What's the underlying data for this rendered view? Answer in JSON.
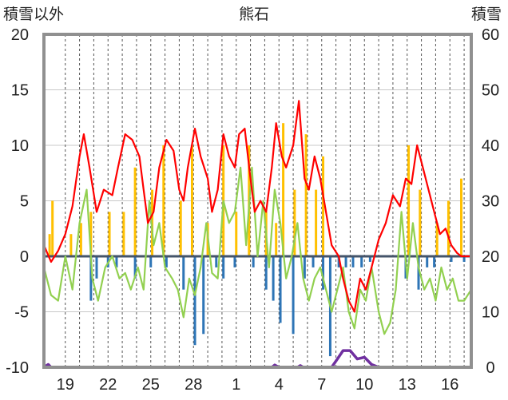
{
  "chart_data": {
    "type": "line",
    "title": "熊石",
    "left_axis_label": "積雪以外",
    "right_axis_label": "積雪",
    "y_left": {
      "min": -10,
      "max": 20,
      "ticks": [
        "20",
        "15",
        "10",
        "5",
        "0",
        "-5",
        "-10"
      ]
    },
    "y_right": {
      "min": 0,
      "max": 60,
      "ticks": [
        "60",
        "50",
        "40",
        "30",
        "20",
        "10",
        "0"
      ]
    },
    "x_ticks": [
      "19",
      "22",
      "25",
      "28",
      "1",
      "4",
      "7",
      "10",
      "13",
      "16"
    ],
    "x_range_days": [
      0,
      30
    ],
    "grid": true,
    "colors": {
      "temperature": "#ff0000",
      "humidity_like": "#92d050",
      "sunshine": "#ffc000",
      "precipitation": "#2e75b6",
      "snow_depth": "#7030a0",
      "zero_line": "#44546a"
    },
    "series": [
      {
        "key": "temperature",
        "axis": "left",
        "points": [
          [
            0,
            1
          ],
          [
            0.5,
            -0.5
          ],
          [
            1,
            0.5
          ],
          [
            1.5,
            2
          ],
          [
            2,
            4.5
          ],
          [
            2.5,
            9
          ],
          [
            2.8,
            11
          ],
          [
            3.2,
            8
          ],
          [
            3.7,
            4
          ],
          [
            4.2,
            6
          ],
          [
            4.8,
            5.5
          ],
          [
            5.2,
            8
          ],
          [
            5.7,
            11
          ],
          [
            6.2,
            10.5
          ],
          [
            6.7,
            9
          ],
          [
            7,
            6
          ],
          [
            7.3,
            3
          ],
          [
            7.7,
            4
          ],
          [
            8.1,
            8
          ],
          [
            8.6,
            10.5
          ],
          [
            9.1,
            9.5
          ],
          [
            9.5,
            6
          ],
          [
            9.8,
            5
          ],
          [
            10.1,
            8
          ],
          [
            10.6,
            11.5
          ],
          [
            11,
            9
          ],
          [
            11.5,
            7
          ],
          [
            11.8,
            4
          ],
          [
            12.2,
            6
          ],
          [
            12.6,
            11
          ],
          [
            13,
            9
          ],
          [
            13.4,
            8
          ],
          [
            13.7,
            11
          ],
          [
            14.1,
            11.5
          ],
          [
            14.5,
            7
          ],
          [
            14.8,
            4
          ],
          [
            15.2,
            5
          ],
          [
            15.6,
            4
          ],
          [
            16,
            8
          ],
          [
            16.3,
            12
          ],
          [
            16.7,
            9
          ],
          [
            17,
            8
          ],
          [
            17.5,
            10
          ],
          [
            17.9,
            14
          ],
          [
            18.3,
            7
          ],
          [
            18.6,
            6
          ],
          [
            19,
            9
          ],
          [
            19.4,
            7
          ],
          [
            19.8,
            4
          ],
          [
            20.2,
            1
          ],
          [
            20.7,
            0
          ],
          [
            21,
            -2
          ],
          [
            21.4,
            -4
          ],
          [
            21.8,
            -5
          ],
          [
            22.2,
            -2
          ],
          [
            22.6,
            -3
          ],
          [
            23,
            -1
          ],
          [
            23.5,
            1.5
          ],
          [
            24,
            3
          ],
          [
            24.5,
            5.5
          ],
          [
            25,
            4.5
          ],
          [
            25.4,
            7
          ],
          [
            25.8,
            6.5
          ],
          [
            26.2,
            10
          ],
          [
            26.6,
            8
          ],
          [
            27,
            6
          ],
          [
            27.4,
            4
          ],
          [
            27.8,
            2
          ],
          [
            28.2,
            2.5
          ],
          [
            28.6,
            1
          ],
          [
            29,
            0.3
          ],
          [
            29.3,
            0
          ],
          [
            30,
            0
          ]
        ]
      },
      {
        "key": "humidity_like",
        "axis": "left",
        "points": [
          [
            0,
            -1
          ],
          [
            0.5,
            -3.5
          ],
          [
            1,
            -4
          ],
          [
            1.5,
            0
          ],
          [
            2,
            -3
          ],
          [
            2.5,
            3
          ],
          [
            3,
            6
          ],
          [
            3.4,
            -2
          ],
          [
            3.8,
            -4
          ],
          [
            4.3,
            -1
          ],
          [
            4.8,
            0
          ],
          [
            5.3,
            -2
          ],
          [
            5.7,
            -1.5
          ],
          [
            6.1,
            -3
          ],
          [
            6.6,
            -1
          ],
          [
            7,
            -3
          ],
          [
            7.4,
            5
          ],
          [
            7.7,
            1
          ],
          [
            8.1,
            3
          ],
          [
            8.5,
            -1
          ],
          [
            9,
            -2
          ],
          [
            9.4,
            -3
          ],
          [
            9.8,
            -5.5
          ],
          [
            10.2,
            -2
          ],
          [
            10.6,
            -3.5
          ],
          [
            11,
            -1
          ],
          [
            11.4,
            3
          ],
          [
            11.8,
            -1.5
          ],
          [
            12.2,
            -2
          ],
          [
            12.6,
            5
          ],
          [
            13,
            3
          ],
          [
            13.4,
            4
          ],
          [
            13.8,
            8
          ],
          [
            14.2,
            1
          ],
          [
            14.6,
            8
          ],
          [
            15,
            0
          ],
          [
            15.4,
            5
          ],
          [
            15.8,
            -1
          ],
          [
            16.2,
            6
          ],
          [
            16.6,
            3
          ],
          [
            17,
            -2
          ],
          [
            17.4,
            0
          ],
          [
            17.8,
            3
          ],
          [
            18.2,
            -2
          ],
          [
            18.6,
            -4
          ],
          [
            19,
            -2
          ],
          [
            19.4,
            -1
          ],
          [
            19.8,
            -3
          ],
          [
            20.2,
            -5
          ],
          [
            20.6,
            -3
          ],
          [
            21,
            -1
          ],
          [
            21.4,
            -5
          ],
          [
            21.8,
            -6.5
          ],
          [
            22.2,
            -3
          ],
          [
            22.6,
            -4
          ],
          [
            23,
            -1
          ],
          [
            23.5,
            -5
          ],
          [
            23.9,
            -7
          ],
          [
            24.3,
            -6
          ],
          [
            24.7,
            -3
          ],
          [
            25.1,
            4
          ],
          [
            25.5,
            -2
          ],
          [
            25.9,
            3
          ],
          [
            26.3,
            -1
          ],
          [
            26.7,
            -3
          ],
          [
            27.1,
            -2
          ],
          [
            27.5,
            -4
          ],
          [
            27.9,
            -1
          ],
          [
            28.3,
            -3
          ],
          [
            28.7,
            -2
          ],
          [
            29.1,
            -4
          ],
          [
            29.5,
            -4
          ],
          [
            30,
            -3
          ]
        ]
      },
      {
        "key": "snow_depth",
        "axis": "right",
        "points": [
          [
            0,
            0
          ],
          [
            0.3,
            0.5
          ],
          [
            0.5,
            0
          ],
          [
            16,
            0
          ],
          [
            16.2,
            0.4
          ],
          [
            16.5,
            0
          ],
          [
            17.8,
            0
          ],
          [
            18,
            0.3
          ],
          [
            18.2,
            0
          ],
          [
            20.2,
            0
          ],
          [
            20.6,
            1.5
          ],
          [
            21,
            3
          ],
          [
            21.5,
            3
          ],
          [
            22,
            1.5
          ],
          [
            22.5,
            1.8
          ],
          [
            23,
            0.5
          ],
          [
            23.5,
            0
          ],
          [
            30,
            0
          ]
        ]
      }
    ],
    "bars": [
      {
        "key": "sunshine",
        "axis": "left",
        "values": [
          [
            0.4,
            2
          ],
          [
            0.6,
            5
          ],
          [
            1.9,
            2
          ],
          [
            2.6,
            3
          ],
          [
            3.3,
            4
          ],
          [
            4.6,
            4
          ],
          [
            5.6,
            4
          ],
          [
            6.4,
            8
          ],
          [
            7.6,
            6
          ],
          [
            8.4,
            10
          ],
          [
            9.6,
            5
          ],
          [
            10.4,
            10
          ],
          [
            11.5,
            3
          ],
          [
            12.6,
            10
          ],
          [
            13.5,
            4
          ],
          [
            14.4,
            10
          ],
          [
            15.6,
            4
          ],
          [
            16.3,
            3
          ],
          [
            16.8,
            12
          ],
          [
            17.6,
            6
          ],
          [
            18.4,
            11
          ],
          [
            19.1,
            6
          ],
          [
            19.6,
            9
          ],
          [
            25.6,
            10
          ],
          [
            26.4,
            6
          ],
          [
            27.6,
            3
          ],
          [
            28.4,
            5
          ],
          [
            29.3,
            7
          ]
        ]
      },
      {
        "key": "precipitation",
        "axis": "left",
        "values": [
          [
            3.3,
            -4
          ],
          [
            3.7,
            -2
          ],
          [
            4.5,
            -1
          ],
          [
            5.1,
            -1
          ],
          [
            6.4,
            -2
          ],
          [
            7.5,
            -1
          ],
          [
            8.6,
            -1
          ],
          [
            9.8,
            -3
          ],
          [
            10.6,
            -8
          ],
          [
            11.2,
            -7
          ],
          [
            12.1,
            -1
          ],
          [
            12.6,
            -2
          ],
          [
            13.4,
            -1
          ],
          [
            14.7,
            -1
          ],
          [
            15.6,
            -3
          ],
          [
            16.1,
            -4
          ],
          [
            16.6,
            -6
          ],
          [
            17.5,
            -7
          ],
          [
            18.3,
            -2
          ],
          [
            18.9,
            -1
          ],
          [
            19.6,
            -3
          ],
          [
            20.1,
            -9
          ],
          [
            20.7,
            -1
          ],
          [
            21.2,
            -1
          ],
          [
            21.7,
            -1
          ],
          [
            22.3,
            -1
          ],
          [
            22.9,
            -0.5
          ],
          [
            25.4,
            -2
          ],
          [
            26.3,
            -3
          ],
          [
            26.9,
            -1
          ],
          [
            27.4,
            -1
          ],
          [
            28.6,
            -0.5
          ],
          [
            29.5,
            -0.5
          ]
        ]
      }
    ]
  }
}
